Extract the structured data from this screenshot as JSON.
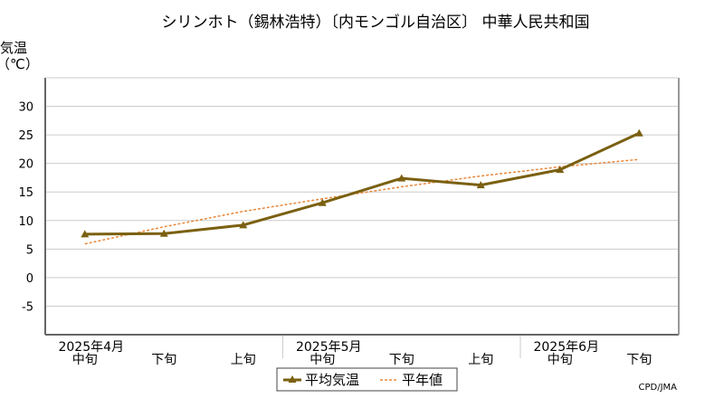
{
  "chart_data": {
    "type": "line",
    "title": "シリンホト（錫林浩特）〔内モンゴル自治区〕 中華人民共和国",
    "ylabel_line1": "気温",
    "ylabel_line2": "（℃）",
    "ylim": [
      -10,
      35
    ],
    "yticks": [
      -5,
      0,
      5,
      10,
      15,
      20,
      25,
      30
    ],
    "grid": true,
    "x_labels": [
      "中旬",
      "下旬",
      "上旬",
      "中旬",
      "下旬",
      "上旬",
      "中旬",
      "下旬"
    ],
    "month_labels": [
      {
        "label": "2025年4月",
        "index": 0
      },
      {
        "label": "2025年5月",
        "index": 3
      },
      {
        "label": "2025年6月",
        "index": 6
      }
    ],
    "series": [
      {
        "name": "平均気温",
        "color": "#7a6010",
        "marker": "triangle",
        "values": [
          7.6,
          7.7,
          9.2,
          13.1,
          17.4,
          16.2,
          18.9,
          25.3
        ]
      },
      {
        "name": "平年値",
        "color": "#e8883a",
        "style": "dotted",
        "values": [
          5.9,
          8.9,
          11.6,
          13.8,
          15.9,
          17.8,
          19.4,
          20.7
        ]
      }
    ],
    "legend_position": "bottom-center",
    "credit": "CPD/JMA"
  }
}
